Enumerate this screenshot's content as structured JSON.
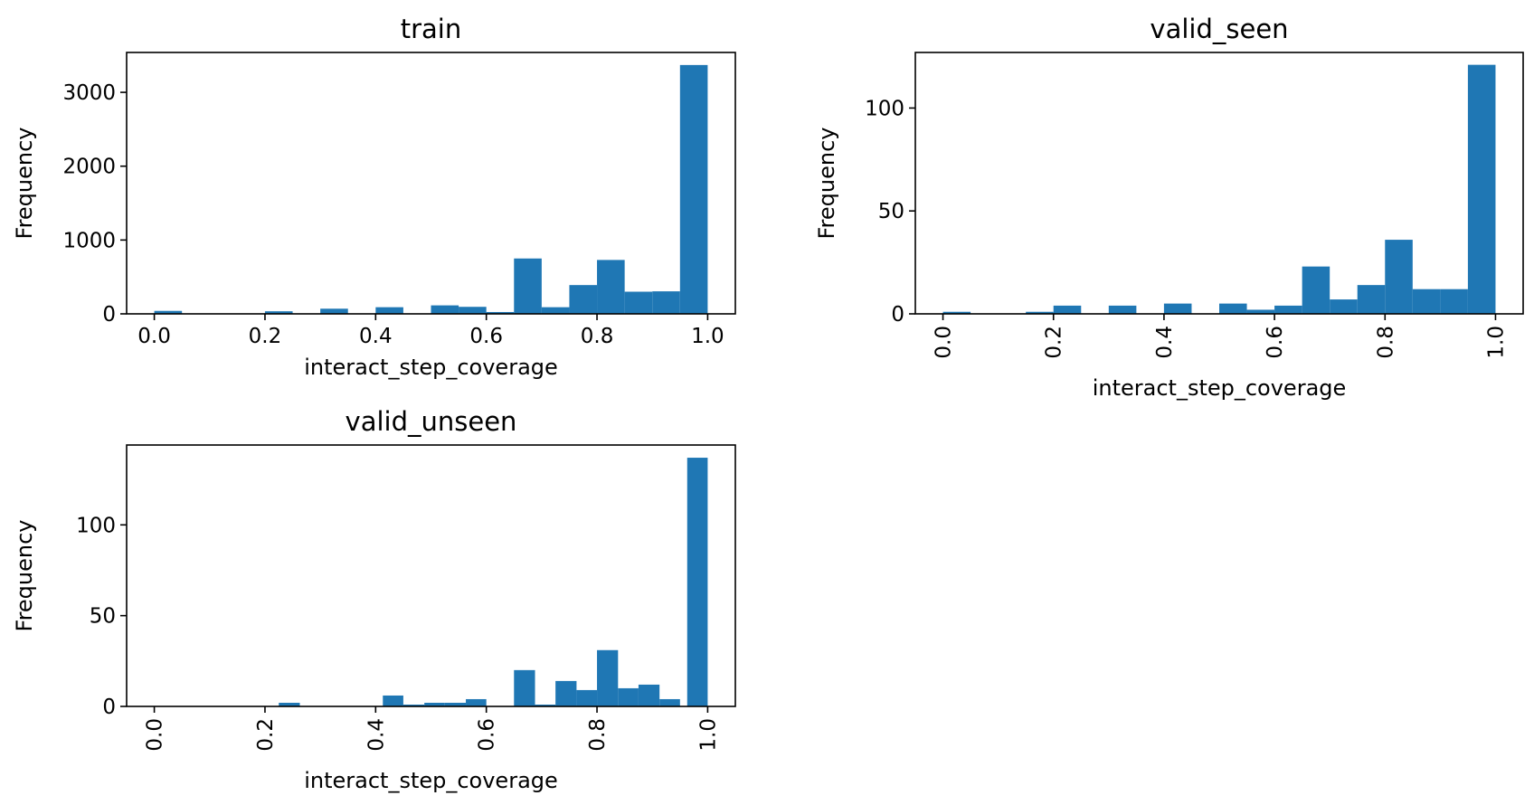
{
  "colors": {
    "bar": "#1f77b4",
    "axis": "#000000",
    "background": "#ffffff"
  },
  "chart_data": [
    {
      "type": "bar",
      "title": "train",
      "xlabel": "interact_step_coverage",
      "ylabel": "Frequency",
      "grid": false,
      "xlim": [
        -0.05,
        1.05
      ],
      "ylim": [
        0,
        3540
      ],
      "x_ticks": [
        "0.0",
        "0.2",
        "0.4",
        "0.6",
        "0.8",
        "1.0"
      ],
      "y_ticks": [
        "0",
        "1000",
        "2000",
        "3000"
      ],
      "tick_rotation": 0,
      "bins": [
        {
          "x0": 0.0,
          "x1": 0.05,
          "count": 40
        },
        {
          "x0": 0.05,
          "x1": 0.1,
          "count": 0
        },
        {
          "x0": 0.1,
          "x1": 0.15,
          "count": 0
        },
        {
          "x0": 0.15,
          "x1": 0.2,
          "count": 0
        },
        {
          "x0": 0.2,
          "x1": 0.25,
          "count": 35
        },
        {
          "x0": 0.25,
          "x1": 0.3,
          "count": 0
        },
        {
          "x0": 0.3,
          "x1": 0.35,
          "count": 70
        },
        {
          "x0": 0.35,
          "x1": 0.4,
          "count": 0
        },
        {
          "x0": 0.4,
          "x1": 0.45,
          "count": 90
        },
        {
          "x0": 0.45,
          "x1": 0.5,
          "count": 0
        },
        {
          "x0": 0.5,
          "x1": 0.55,
          "count": 115
        },
        {
          "x0": 0.55,
          "x1": 0.6,
          "count": 95
        },
        {
          "x0": 0.6,
          "x1": 0.65,
          "count": 25
        },
        {
          "x0": 0.65,
          "x1": 0.7,
          "count": 750
        },
        {
          "x0": 0.7,
          "x1": 0.75,
          "count": 90
        },
        {
          "x0": 0.75,
          "x1": 0.8,
          "count": 390
        },
        {
          "x0": 0.8,
          "x1": 0.85,
          "count": 730
        },
        {
          "x0": 0.85,
          "x1": 0.9,
          "count": 300
        },
        {
          "x0": 0.9,
          "x1": 0.95,
          "count": 305
        },
        {
          "x0": 0.95,
          "x1": 1.0,
          "count": 3370
        }
      ]
    },
    {
      "type": "bar",
      "title": "valid_seen",
      "xlabel": "interact_step_coverage",
      "ylabel": "Frequency",
      "grid": false,
      "xlim": [
        -0.05,
        1.05
      ],
      "ylim": [
        0,
        127
      ],
      "x_ticks": [
        "0.0",
        "0.2",
        "0.4",
        "0.6",
        "0.8",
        "1.0"
      ],
      "y_ticks": [
        "0",
        "50",
        "100"
      ],
      "tick_rotation": 90,
      "bins": [
        {
          "x0": 0.0,
          "x1": 0.05,
          "count": 1
        },
        {
          "x0": 0.05,
          "x1": 0.1,
          "count": 0
        },
        {
          "x0": 0.1,
          "x1": 0.15,
          "count": 0
        },
        {
          "x0": 0.15,
          "x1": 0.2,
          "count": 1
        },
        {
          "x0": 0.2,
          "x1": 0.25,
          "count": 4
        },
        {
          "x0": 0.25,
          "x1": 0.3,
          "count": 0
        },
        {
          "x0": 0.3,
          "x1": 0.35,
          "count": 4
        },
        {
          "x0": 0.35,
          "x1": 0.4,
          "count": 0
        },
        {
          "x0": 0.4,
          "x1": 0.45,
          "count": 5
        },
        {
          "x0": 0.45,
          "x1": 0.5,
          "count": 0
        },
        {
          "x0": 0.5,
          "x1": 0.55,
          "count": 5
        },
        {
          "x0": 0.55,
          "x1": 0.6,
          "count": 2
        },
        {
          "x0": 0.6,
          "x1": 0.65,
          "count": 4
        },
        {
          "x0": 0.65,
          "x1": 0.7,
          "count": 23
        },
        {
          "x0": 0.7,
          "x1": 0.75,
          "count": 7
        },
        {
          "x0": 0.75,
          "x1": 0.8,
          "count": 14
        },
        {
          "x0": 0.8,
          "x1": 0.85,
          "count": 36
        },
        {
          "x0": 0.85,
          "x1": 0.9,
          "count": 12
        },
        {
          "x0": 0.9,
          "x1": 0.95,
          "count": 12
        },
        {
          "x0": 0.95,
          "x1": 1.0,
          "count": 121
        }
      ]
    },
    {
      "type": "bar",
      "title": "valid_unseen",
      "xlabel": "interact_step_coverage",
      "ylabel": "Frequency",
      "grid": false,
      "xlim": [
        -0.05,
        1.05
      ],
      "ylim": [
        0,
        144
      ],
      "x_ticks": [
        "0.0",
        "0.2",
        "0.4",
        "0.6",
        "0.8",
        "1.0"
      ],
      "y_ticks": [
        "0",
        "50",
        "100"
      ],
      "tick_rotation": 90,
      "bins": [
        {
          "x0": 0.225,
          "x1": 0.263,
          "count": 2
        },
        {
          "x0": 0.413,
          "x1": 0.45,
          "count": 6
        },
        {
          "x0": 0.45,
          "x1": 0.488,
          "count": 1
        },
        {
          "x0": 0.488,
          "x1": 0.525,
          "count": 2
        },
        {
          "x0": 0.525,
          "x1": 0.563,
          "count": 2
        },
        {
          "x0": 0.563,
          "x1": 0.6,
          "count": 4
        },
        {
          "x0": 0.65,
          "x1": 0.688,
          "count": 20
        },
        {
          "x0": 0.688,
          "x1": 0.725,
          "count": 1
        },
        {
          "x0": 0.725,
          "x1": 0.763,
          "count": 14
        },
        {
          "x0": 0.763,
          "x1": 0.8,
          "count": 9
        },
        {
          "x0": 0.8,
          "x1": 0.838,
          "count": 31
        },
        {
          "x0": 0.838,
          "x1": 0.875,
          "count": 10
        },
        {
          "x0": 0.875,
          "x1": 0.913,
          "count": 12
        },
        {
          "x0": 0.913,
          "x1": 0.95,
          "count": 4
        },
        {
          "x0": 0.963,
          "x1": 1.0,
          "count": 137
        }
      ]
    }
  ]
}
